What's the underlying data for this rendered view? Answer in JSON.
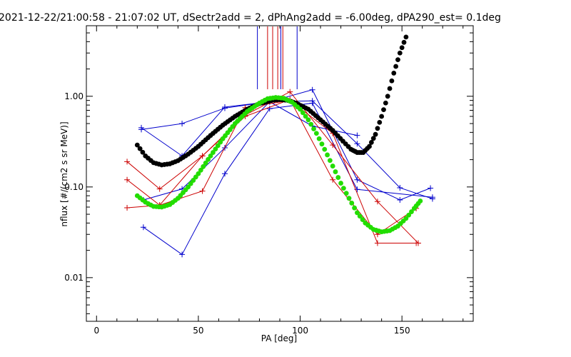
{
  "chart_data": {
    "type": "scatter",
    "title": "2021-12-22/21:00:58 - 21:07:02 UT, dSectr2add = 2, dPhAng2add = -6.00deg, dPA290_est=   0.1deg",
    "xlabel": "PA [deg]",
    "ylabel": "nflux [#/(cm2 s sr MeV)]",
    "xlim": [
      -5,
      185
    ],
    "ylim": [
      0.0033,
      6.0
    ],
    "yscale": "log",
    "grid": false,
    "legend": "none",
    "x_ticks": [
      {
        "value": 0,
        "label": "0"
      },
      {
        "value": 50,
        "label": "50"
      },
      {
        "value": 100,
        "label": "100"
      },
      {
        "value": 150,
        "label": "150"
      }
    ],
    "y_ticks": [
      {
        "value": 0.01,
        "label": "0.01"
      },
      {
        "value": 0.1,
        "label": "0.10"
      },
      {
        "value": 1.0,
        "label": "1.00"
      }
    ],
    "vertical_markers": [
      {
        "x": 79,
        "color": "#0000cc"
      },
      {
        "x": 84,
        "color": "#cc0000"
      },
      {
        "x": 86.5,
        "color": "#cc0000"
      },
      {
        "x": 89,
        "color": "#cc0000"
      },
      {
        "x": 90.5,
        "color": "#0000cc"
      },
      {
        "x": 91.5,
        "color": "#cc0000"
      },
      {
        "x": 98.5,
        "color": "#0000cc"
      }
    ],
    "series": [
      {
        "color": "#0000cc",
        "style": "line-plus",
        "points": [
          [
            22,
            0.43
          ],
          [
            42,
            0.5
          ],
          [
            63,
            0.74
          ],
          [
            85,
            0.87
          ],
          [
            106,
            0.47
          ],
          [
            128,
            0.37
          ]
        ]
      },
      {
        "color": "#0000cc",
        "style": "line-plus",
        "points": [
          [
            22,
            0.45
          ],
          [
            42,
            0.22
          ],
          [
            63,
            0.76
          ],
          [
            85,
            0.87
          ],
          [
            106,
            1.18
          ],
          [
            128,
            0.12
          ],
          [
            149,
            0.072
          ],
          [
            164,
            0.097
          ]
        ]
      },
      {
        "color": "#0000cc",
        "style": "line-plus",
        "points": [
          [
            23,
            0.072
          ],
          [
            42,
            0.095
          ],
          [
            63,
            0.27
          ],
          [
            85,
            0.87
          ],
          [
            106,
            0.89
          ],
          [
            128,
            0.3
          ],
          [
            149,
            0.098
          ],
          [
            165,
            0.074
          ]
        ]
      },
      {
        "color": "#0000cc",
        "style": "line-plus",
        "points": [
          [
            23,
            0.036
          ],
          [
            42,
            0.018
          ],
          [
            63,
            0.14
          ],
          [
            85,
            0.73
          ],
          [
            106,
            0.84
          ],
          [
            128,
            0.094
          ],
          [
            165,
            0.077
          ]
        ]
      },
      {
        "color": "#cc0000",
        "style": "line-plus",
        "points": [
          [
            15,
            0.19
          ],
          [
            31,
            0.095
          ],
          [
            52,
            0.22
          ],
          [
            73,
            0.62
          ],
          [
            95,
            1.12
          ],
          [
            116,
            0.29
          ],
          [
            138,
            0.069
          ],
          [
            158,
            0.024
          ]
        ]
      },
      {
        "color": "#cc0000",
        "style": "line-plus",
        "points": [
          [
            15,
            0.12
          ],
          [
            31,
            0.063
          ],
          [
            52,
            0.22
          ],
          [
            73,
            0.6
          ],
          [
            95,
            0.92
          ],
          [
            116,
            0.12
          ],
          [
            138,
            0.03
          ],
          [
            157,
            0.058
          ]
        ]
      },
      {
        "color": "#cc0000",
        "style": "line-plus",
        "points": [
          [
            15,
            0.059
          ],
          [
            31,
            0.063
          ],
          [
            52,
            0.09
          ],
          [
            73,
            0.75
          ],
          [
            95,
            0.9
          ],
          [
            116,
            0.39
          ],
          [
            138,
            0.024
          ],
          [
            157,
            0.024
          ]
        ]
      },
      {
        "color": "#000000",
        "style": "dots",
        "points": [
          [
            20,
            0.29
          ],
          [
            24,
            0.22
          ],
          [
            28,
            0.185
          ],
          [
            32,
            0.175
          ],
          [
            36,
            0.18
          ],
          [
            40,
            0.195
          ],
          [
            45,
            0.23
          ],
          [
            50,
            0.28
          ],
          [
            56,
            0.37
          ],
          [
            62,
            0.48
          ],
          [
            68,
            0.6
          ],
          [
            74,
            0.72
          ],
          [
            80,
            0.83
          ],
          [
            86,
            0.9
          ],
          [
            90,
            0.92
          ],
          [
            94,
            0.9
          ],
          [
            98,
            0.84
          ],
          [
            104,
            0.72
          ],
          [
            110,
            0.55
          ],
          [
            116,
            0.42
          ],
          [
            121,
            0.32
          ],
          [
            125,
            0.26
          ],
          [
            128,
            0.24
          ],
          [
            131,
            0.24
          ],
          [
            134,
            0.28
          ],
          [
            137,
            0.38
          ],
          [
            140,
            0.6
          ],
          [
            143,
            1.0
          ],
          [
            146,
            1.8
          ],
          [
            149,
            3.0
          ],
          [
            152,
            4.5
          ]
        ]
      },
      {
        "color": "#22dd00",
        "style": "dots",
        "points": [
          [
            20,
            0.08
          ],
          [
            24,
            0.068
          ],
          [
            28,
            0.061
          ],
          [
            32,
            0.06
          ],
          [
            36,
            0.064
          ],
          [
            40,
            0.075
          ],
          [
            45,
            0.1
          ],
          [
            50,
            0.14
          ],
          [
            56,
            0.22
          ],
          [
            62,
            0.34
          ],
          [
            68,
            0.5
          ],
          [
            74,
            0.68
          ],
          [
            80,
            0.84
          ],
          [
            84,
            0.94
          ],
          [
            88,
            0.97
          ],
          [
            92,
            0.95
          ],
          [
            96,
            0.86
          ],
          [
            100,
            0.72
          ],
          [
            104,
            0.55
          ],
          [
            108,
            0.39
          ],
          [
            112,
            0.26
          ],
          [
            116,
            0.17
          ],
          [
            120,
            0.11
          ],
          [
            124,
            0.075
          ],
          [
            128,
            0.052
          ],
          [
            132,
            0.04
          ],
          [
            136,
            0.034
          ],
          [
            140,
            0.032
          ],
          [
            144,
            0.033
          ],
          [
            148,
            0.037
          ],
          [
            152,
            0.045
          ],
          [
            156,
            0.058
          ],
          [
            159,
            0.07
          ]
        ]
      }
    ]
  }
}
